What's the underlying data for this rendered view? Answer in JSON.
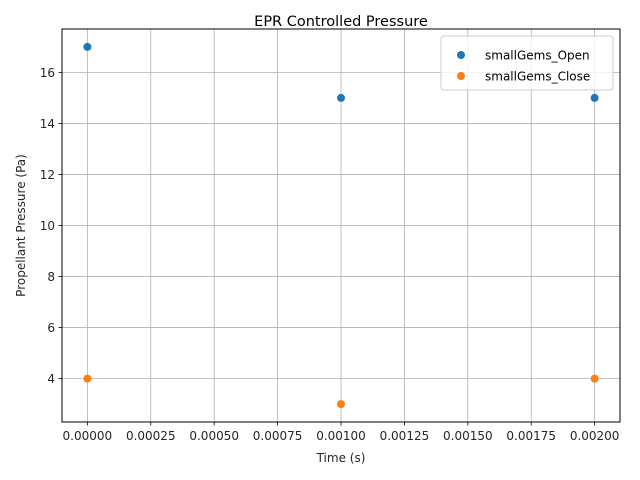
{
  "chart_data": {
    "type": "scatter",
    "title": "EPR Controlled Pressure",
    "xlabel": "Time (s)",
    "ylabel": "Propellant Pressure (Pa)",
    "xlim": [
      -0.0001,
      0.0021
    ],
    "ylim": [
      2.3,
      17.7
    ],
    "xticks": [
      0.0,
      0.00025,
      0.0005,
      0.00075,
      0.001,
      0.00125,
      0.0015,
      0.00175,
      0.002
    ],
    "xtick_labels": [
      "0.00000",
      "0.00025",
      "0.00050",
      "0.00075",
      "0.00100",
      "0.00125",
      "0.00150",
      "0.00175",
      "0.00200"
    ],
    "yticks": [
      4,
      6,
      8,
      10,
      12,
      14,
      16
    ],
    "ytick_labels": [
      "4",
      "6",
      "8",
      "10",
      "12",
      "14",
      "16"
    ],
    "grid": true,
    "legend_position": "top-right",
    "series": [
      {
        "name": "smallGems_Open",
        "color": "#1f77b4",
        "x": [
          0.0,
          0.001,
          0.002
        ],
        "y": [
          17,
          15,
          15
        ]
      },
      {
        "name": "smallGems_Close",
        "color": "#ff7f0e",
        "x": [
          0.0,
          0.001,
          0.002
        ],
        "y": [
          4,
          3,
          4
        ]
      }
    ]
  }
}
